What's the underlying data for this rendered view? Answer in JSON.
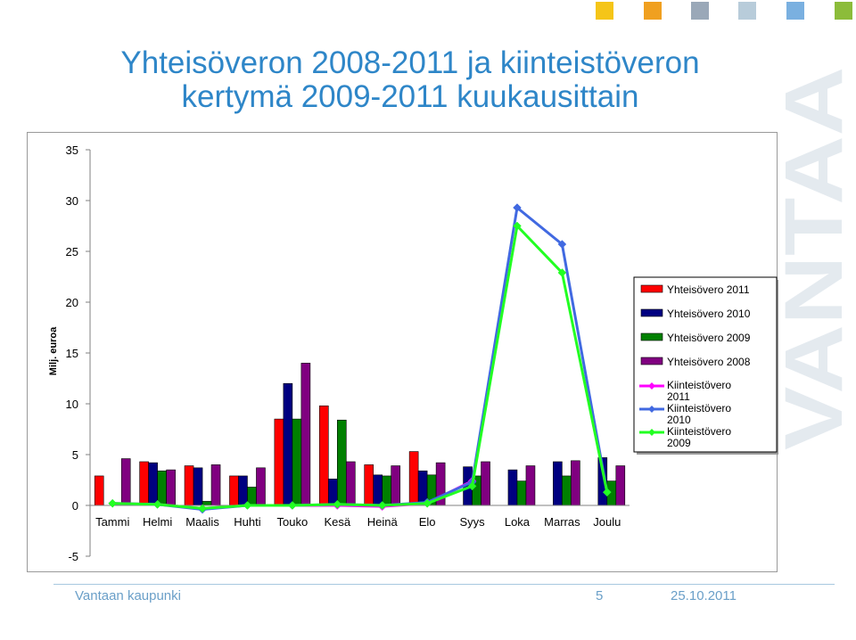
{
  "page": {
    "title_line1": "Yhteisöveron 2008-2011 ja kiinteistöveron",
    "title_line2": "kertymä 2009-2011 kuukausittain",
    "footer_org": "Vantaan kaupunki",
    "footer_page": "5",
    "footer_date": "25.10.2011",
    "brand_text": "VANTAA",
    "accent_squares": [
      "#f5c518",
      "#f0a020",
      "#9aa8b8",
      "#b8ccda",
      "#7ab0e0",
      "#8cbc3a",
      "#3a8ad0"
    ]
  },
  "chart_data": {
    "type": "bar",
    "ylabel": "Milj. euroa",
    "ylim": [
      -5,
      35
    ],
    "yticks": [
      -5,
      0,
      5,
      10,
      15,
      20,
      25,
      30,
      35
    ],
    "legend_position": "right",
    "categories": [
      "Tammi",
      "Helmi",
      "Maalis",
      "Huhti",
      "Touko",
      "Kesä",
      "Heinä",
      "Elo",
      "Syys",
      "Loka",
      "Marras",
      "Joulu"
    ],
    "bar_series": [
      {
        "name": "Yhteisövero 2011",
        "color": "#ff0000",
        "values": [
          2.9,
          4.3,
          3.9,
          2.9,
          8.5,
          9.8,
          4.0,
          5.3,
          null,
          null,
          null,
          null
        ]
      },
      {
        "name": "Yhteisövero 2010",
        "color": "#000080",
        "values": [
          null,
          4.2,
          3.7,
          2.9,
          12.0,
          2.6,
          3.0,
          3.4,
          3.8,
          3.5,
          4.3,
          4.7
        ]
      },
      {
        "name": "Yhteisövero 2009",
        "color": "#008000",
        "values": [
          null,
          3.4,
          0.4,
          1.8,
          8.5,
          8.4,
          2.9,
          3.0,
          2.9,
          2.4,
          2.9,
          2.4
        ]
      },
      {
        "name": "Yhteisövero 2008",
        "color": "#800080",
        "values": [
          4.6,
          3.5,
          4.0,
          3.7,
          14.0,
          4.3,
          3.9,
          4.2,
          4.3,
          3.9,
          4.4,
          3.9
        ]
      }
    ],
    "line_series": [
      {
        "name": "Kiinteistövero 2011",
        "color": "#ff00ff",
        "values": [
          0.2,
          0.1,
          -0.3,
          0.0,
          0.0,
          0.0,
          -0.1,
          0.2,
          2.4,
          null,
          null,
          null
        ]
      },
      {
        "name": "Kiinteistövero 2010",
        "color": "#4169e1",
        "values": [
          0.2,
          0.1,
          -0.4,
          0.0,
          0.0,
          0.1,
          0.0,
          0.3,
          2.3,
          29.3,
          25.7,
          1.3
        ]
      },
      {
        "name": "Kiinteistövero 2009",
        "color": "#22ff22",
        "values": [
          0.2,
          0.1,
          -0.3,
          0.0,
          0.0,
          0.1,
          0.0,
          0.2,
          1.9,
          27.5,
          22.9,
          1.3
        ]
      }
    ]
  }
}
